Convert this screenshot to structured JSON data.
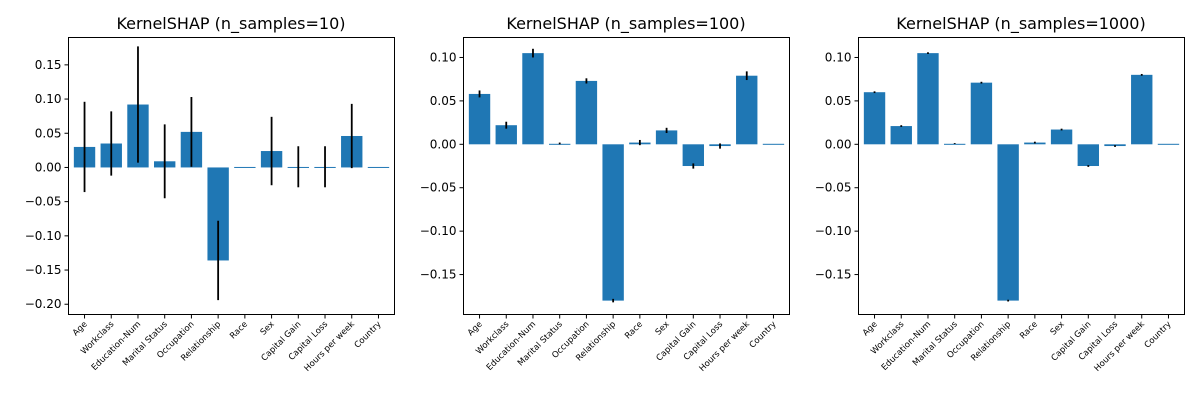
{
  "colors": {
    "bar": "#1f77b4",
    "error": "#000000"
  },
  "chart_data": [
    {
      "type": "bar",
      "title": "KernelSHAP (n_samples=10)",
      "categories": [
        "Age",
        "Workclass",
        "Education-Num",
        "Marital Status",
        "Occupation",
        "Relationship",
        "Race",
        "Sex",
        "Capital Gain",
        "Capital Loss",
        "Hours per week",
        "Country"
      ],
      "values": [
        0.03,
        0.035,
        0.092,
        0.009,
        0.052,
        -0.136,
        0.0,
        0.024,
        0.001,
        0.001,
        0.046,
        0.001
      ],
      "errors": [
        0.066,
        0.047,
        0.085,
        0.054,
        0.051,
        0.058,
        0.0,
        0.05,
        0.03,
        0.03,
        0.047,
        0.0
      ],
      "ylim": [
        -0.215,
        0.19
      ],
      "yticks": [
        -0.2,
        -0.15,
        -0.1,
        -0.05,
        0.0,
        0.05,
        0.1,
        0.15
      ],
      "ytick_labels": [
        "−0.20",
        "−0.15",
        "−0.10",
        "−0.05",
        "0.00",
        "0.05",
        "0.10",
        "0.15"
      ],
      "xlabel": "",
      "ylabel": "",
      "grid": false
    },
    {
      "type": "bar",
      "title": "KernelSHAP (n_samples=100)",
      "categories": [
        "Age",
        "Workclass",
        "Education-Num",
        "Marital Status",
        "Occupation",
        "Relationship",
        "Race",
        "Sex",
        "Capital Gain",
        "Capital Loss",
        "Hours per week",
        "Country"
      ],
      "values": [
        0.058,
        0.022,
        0.105,
        0.001,
        0.073,
        -0.18,
        0.002,
        0.016,
        -0.025,
        -0.002,
        0.079,
        0.0
      ],
      "errors": [
        0.004,
        0.004,
        0.005,
        0.001,
        0.003,
        0.002,
        0.003,
        0.003,
        0.003,
        0.003,
        0.005,
        0.0
      ],
      "ylim": [
        -0.196,
        0.123
      ],
      "yticks": [
        -0.15,
        -0.1,
        -0.05,
        0.0,
        0.05,
        0.1
      ],
      "ytick_labels": [
        "−0.15",
        "−0.10",
        "−0.05",
        "0.00",
        "0.05",
        "0.10"
      ],
      "xlabel": "",
      "ylabel": "",
      "grid": false
    },
    {
      "type": "bar",
      "title": "KernelSHAP (n_samples=1000)",
      "categories": [
        "Age",
        "Workclass",
        "Education-Num",
        "Marital Status",
        "Occupation",
        "Relationship",
        "Race",
        "Sex",
        "Capital Gain",
        "Capital Loss",
        "Hours per week",
        "Country"
      ],
      "values": [
        0.06,
        0.021,
        0.105,
        0.001,
        0.071,
        -0.18,
        0.002,
        0.017,
        -0.025,
        -0.002,
        0.08,
        0.001
      ],
      "errors": [
        0.001,
        0.001,
        0.001,
        0.0005,
        0.001,
        0.001,
        0.001,
        0.001,
        0.001,
        0.001,
        0.001,
        0.0
      ],
      "ylim": [
        -0.196,
        0.123
      ],
      "yticks": [
        -0.15,
        -0.1,
        -0.05,
        0.0,
        0.05,
        0.1
      ],
      "ytick_labels": [
        "−0.15",
        "−0.10",
        "−0.05",
        "0.00",
        "0.05",
        "0.10"
      ],
      "xlabel": "",
      "ylabel": "",
      "grid": false
    }
  ]
}
